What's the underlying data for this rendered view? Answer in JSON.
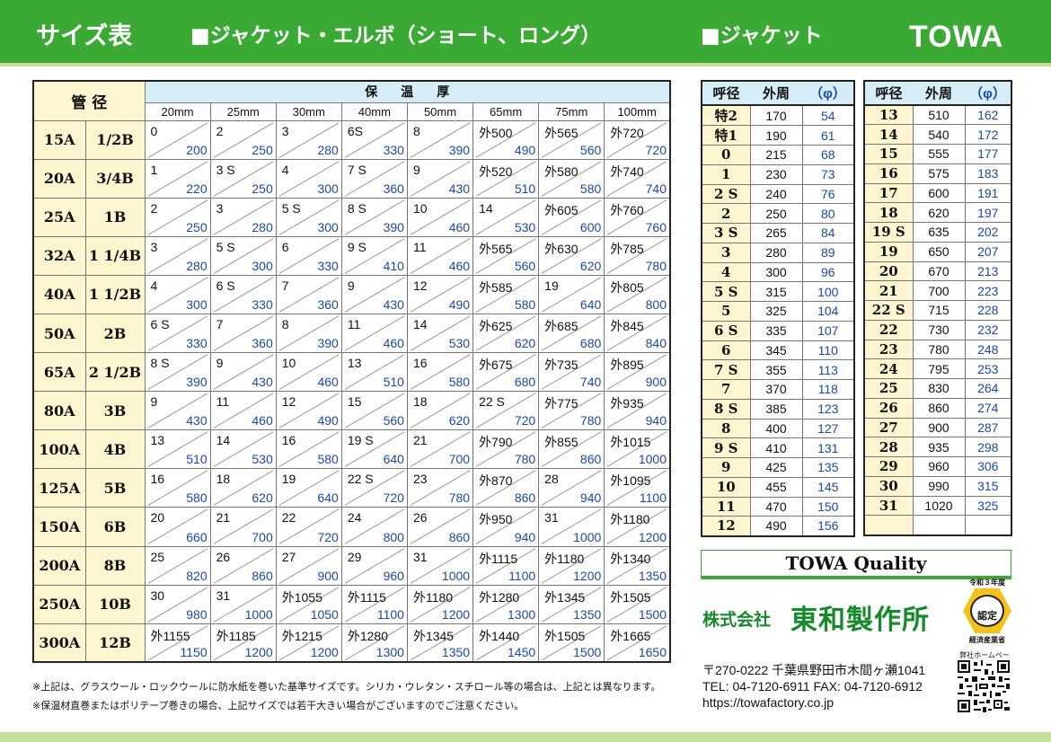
{
  "header": {
    "title": "サイズ表",
    "section_left": "■ジャケット・エルボ（ショート、ロング）",
    "section_right": "■ジャケット",
    "logo": "TOWA"
  },
  "size_table": {
    "pipe_header": "管 径",
    "insulation_header": "保温厚",
    "thicknesses": [
      "20mm",
      "25mm",
      "30mm",
      "40mm",
      "50mm",
      "65mm",
      "75mm",
      "100mm"
    ],
    "rows": [
      {
        "a": "15A",
        "b": "1/2B",
        "cells": [
          {
            "s": "0",
            "p": "200"
          },
          {
            "s": "2",
            "p": "250"
          },
          {
            "s": "3",
            "p": "280"
          },
          {
            "s": "6S",
            "p": "330"
          },
          {
            "s": "8",
            "p": "390"
          },
          {
            "s": "外500",
            "p": "490"
          },
          {
            "s": "外565",
            "p": "560"
          },
          {
            "s": "外720",
            "p": "720"
          }
        ]
      },
      {
        "a": "20A",
        "b": "3/4B",
        "cells": [
          {
            "s": "1",
            "p": "220"
          },
          {
            "s": "3 S",
            "p": "250"
          },
          {
            "s": "4",
            "p": "300"
          },
          {
            "s": "7 S",
            "p": "360"
          },
          {
            "s": "9",
            "p": "430"
          },
          {
            "s": "外520",
            "p": "510"
          },
          {
            "s": "外580",
            "p": "580"
          },
          {
            "s": "外740",
            "p": "740"
          }
        ]
      },
      {
        "a": "25A",
        "b": "1B",
        "cells": [
          {
            "s": "2",
            "p": "250"
          },
          {
            "s": "3",
            "p": "280"
          },
          {
            "s": "5 S",
            "p": "300"
          },
          {
            "s": "8 S",
            "p": "390"
          },
          {
            "s": "10",
            "p": "460"
          },
          {
            "s": "14",
            "p": "530"
          },
          {
            "s": "外605",
            "p": "600"
          },
          {
            "s": "外760",
            "p": "760"
          }
        ]
      },
      {
        "a": "32A",
        "b": "1 1/4B",
        "cells": [
          {
            "s": "3",
            "p": "280"
          },
          {
            "s": "5 S",
            "p": "300"
          },
          {
            "s": "6",
            "p": "330"
          },
          {
            "s": "9 S",
            "p": "410"
          },
          {
            "s": "11",
            "p": "460"
          },
          {
            "s": "外565",
            "p": "560"
          },
          {
            "s": "外630",
            "p": "620"
          },
          {
            "s": "外785",
            "p": "780"
          }
        ]
      },
      {
        "a": "40A",
        "b": "1 1/2B",
        "cells": [
          {
            "s": "4",
            "p": "300"
          },
          {
            "s": "6 S",
            "p": "330"
          },
          {
            "s": "7",
            "p": "360"
          },
          {
            "s": "9",
            "p": "430"
          },
          {
            "s": "12",
            "p": "490"
          },
          {
            "s": "外585",
            "p": "580"
          },
          {
            "s": "19",
            "p": "640"
          },
          {
            "s": "外805",
            "p": "800"
          }
        ]
      },
      {
        "a": "50A",
        "b": "2B",
        "cells": [
          {
            "s": "6 S",
            "p": "330"
          },
          {
            "s": "7",
            "p": "360"
          },
          {
            "s": "8",
            "p": "390"
          },
          {
            "s": "11",
            "p": "460"
          },
          {
            "s": "14",
            "p": "530"
          },
          {
            "s": "外625",
            "p": "620"
          },
          {
            "s": "外685",
            "p": "680"
          },
          {
            "s": "外845",
            "p": "840"
          }
        ]
      },
      {
        "a": "65A",
        "b": "2 1/2B",
        "cells": [
          {
            "s": "8 S",
            "p": "390"
          },
          {
            "s": "9",
            "p": "430"
          },
          {
            "s": "10",
            "p": "460"
          },
          {
            "s": "13",
            "p": "510"
          },
          {
            "s": "16",
            "p": "580"
          },
          {
            "s": "外675",
            "p": "680"
          },
          {
            "s": "外735",
            "p": "740"
          },
          {
            "s": "外895",
            "p": "900"
          }
        ]
      },
      {
        "a": "80A",
        "b": "3B",
        "cells": [
          {
            "s": "9",
            "p": "430"
          },
          {
            "s": "11",
            "p": "460"
          },
          {
            "s": "12",
            "p": "490"
          },
          {
            "s": "15",
            "p": "560"
          },
          {
            "s": "18",
            "p": "620"
          },
          {
            "s": "22 S",
            "p": "720"
          },
          {
            "s": "外775",
            "p": "780"
          },
          {
            "s": "外935",
            "p": "940"
          }
        ]
      },
      {
        "a": "100A",
        "b": "4B",
        "cells": [
          {
            "s": "13",
            "p": "510"
          },
          {
            "s": "14",
            "p": "530"
          },
          {
            "s": "16",
            "p": "580"
          },
          {
            "s": "19 S",
            "p": "640"
          },
          {
            "s": "21",
            "p": "700"
          },
          {
            "s": "外790",
            "p": "780"
          },
          {
            "s": "外855",
            "p": "860"
          },
          {
            "s": "外1015",
            "p": "1000"
          }
        ]
      },
      {
        "a": "125A",
        "b": "5B",
        "cells": [
          {
            "s": "16",
            "p": "580"
          },
          {
            "s": "18",
            "p": "620"
          },
          {
            "s": "19",
            "p": "640"
          },
          {
            "s": "22 S",
            "p": "720"
          },
          {
            "s": "23",
            "p": "780"
          },
          {
            "s": "外870",
            "p": "860"
          },
          {
            "s": "28",
            "p": "940"
          },
          {
            "s": "外1095",
            "p": "1100"
          }
        ]
      },
      {
        "a": "150A",
        "b": "6B",
        "cells": [
          {
            "s": "20",
            "p": "660"
          },
          {
            "s": "21",
            "p": "700"
          },
          {
            "s": "22",
            "p": "720"
          },
          {
            "s": "24",
            "p": "800"
          },
          {
            "s": "26",
            "p": "860"
          },
          {
            "s": "外950",
            "p": "940"
          },
          {
            "s": "31",
            "p": "1000"
          },
          {
            "s": "外1180",
            "p": "1200"
          }
        ]
      },
      {
        "a": "200A",
        "b": "8B",
        "cells": [
          {
            "s": "25",
            "p": "820"
          },
          {
            "s": "26",
            "p": "860"
          },
          {
            "s": "27",
            "p": "900"
          },
          {
            "s": "29",
            "p": "960"
          },
          {
            "s": "31",
            "p": "1000"
          },
          {
            "s": "外1115",
            "p": "1100"
          },
          {
            "s": "外1180",
            "p": "1200"
          },
          {
            "s": "外1340",
            "p": "1350"
          }
        ]
      },
      {
        "a": "250A",
        "b": "10B",
        "cells": [
          {
            "s": "30",
            "p": "980"
          },
          {
            "s": "31",
            "p": "1000"
          },
          {
            "s": "外1055",
            "p": "1050"
          },
          {
            "s": "外1115",
            "p": "1100"
          },
          {
            "s": "外1180",
            "p": "1200"
          },
          {
            "s": "外1280",
            "p": "1300"
          },
          {
            "s": "外1345",
            "p": "1350"
          },
          {
            "s": "外1505",
            "p": "1500"
          }
        ]
      },
      {
        "a": "300A",
        "b": "12B",
        "cells": [
          {
            "s": "外1155",
            "p": "1150"
          },
          {
            "s": "外1185",
            "p": "1200"
          },
          {
            "s": "外1215",
            "p": "1200"
          },
          {
            "s": "外1280",
            "p": "1300"
          },
          {
            "s": "外1345",
            "p": "1350"
          },
          {
            "s": "外1440",
            "p": "1450"
          },
          {
            "s": "外1505",
            "p": "1500"
          },
          {
            "s": "外1665",
            "p": "1650"
          }
        ]
      }
    ]
  },
  "notes": [
    "※上記は、グラスウール・ロックウールに防水紙を巻いた基準サイズです。シリカ・ウレタン・スチロール等の場合は、上記とは異なります。",
    "※保温材直巻またはポリテープ巻きの場合、上記サイズでは若干大きい場合がございますのでご注意ください。"
  ],
  "jacket_table": {
    "headers": [
      "呼径",
      "外周",
      "（φ）"
    ],
    "left_rows": [
      [
        "特2",
        "170",
        "54"
      ],
      [
        "特1",
        "190",
        "61"
      ],
      [
        "0",
        "215",
        "68"
      ],
      [
        "1",
        "230",
        "73"
      ],
      [
        "2 S",
        "240",
        "76"
      ],
      [
        "2",
        "250",
        "80"
      ],
      [
        "3 S",
        "265",
        "84"
      ],
      [
        "3",
        "280",
        "89"
      ],
      [
        "4",
        "300",
        "96"
      ],
      [
        "5 S",
        "315",
        "100"
      ],
      [
        "5",
        "325",
        "104"
      ],
      [
        "6 S",
        "335",
        "107"
      ],
      [
        "6",
        "345",
        "110"
      ],
      [
        "7 S",
        "355",
        "113"
      ],
      [
        "7",
        "370",
        "118"
      ],
      [
        "8 S",
        "385",
        "123"
      ],
      [
        "8",
        "400",
        "127"
      ],
      [
        "9 S",
        "410",
        "131"
      ],
      [
        "9",
        "425",
        "135"
      ],
      [
        "10",
        "455",
        "145"
      ],
      [
        "11",
        "470",
        "150"
      ],
      [
        "12",
        "490",
        "156"
      ]
    ],
    "right_rows": [
      [
        "13",
        "510",
        "162"
      ],
      [
        "14",
        "540",
        "172"
      ],
      [
        "15",
        "555",
        "177"
      ],
      [
        "16",
        "575",
        "183"
      ],
      [
        "17",
        "600",
        "191"
      ],
      [
        "18",
        "620",
        "197"
      ],
      [
        "19 S",
        "635",
        "202"
      ],
      [
        "19",
        "650",
        "207"
      ],
      [
        "20",
        "670",
        "213"
      ],
      [
        "21",
        "700",
        "223"
      ],
      [
        "22 S",
        "715",
        "228"
      ],
      [
        "22",
        "730",
        "232"
      ],
      [
        "23",
        "780",
        "248"
      ],
      [
        "24",
        "795",
        "253"
      ],
      [
        "25",
        "830",
        "264"
      ],
      [
        "26",
        "860",
        "274"
      ],
      [
        "27",
        "900",
        "287"
      ],
      [
        "28",
        "935",
        "298"
      ],
      [
        "29",
        "960",
        "306"
      ],
      [
        "30",
        "990",
        "315"
      ],
      [
        "31",
        "1020",
        "325"
      ],
      [
        "",
        "",
        ""
      ]
    ]
  },
  "company": {
    "quality": "TOWA Quality",
    "prefix": "株式会社",
    "name": "東和製作所",
    "cert_era": "令和３年度",
    "cert_mark": "認定",
    "cert_ministry": "経済産業省",
    "address": "〒270-0222 千葉県野田市木間ヶ瀬1041",
    "tel": "TEL: 04-7120-6911  FAX: 04-7120-6912",
    "url": "https://towafactory.co.jp",
    "qr_label": "弊社ホームページ"
  },
  "colors": {
    "brand_green": "#3aaa35",
    "light_green": "#c4df9a",
    "header_blue": "#d6ecf7",
    "cream": "#fdf5cf",
    "value_blue": "#1b49a8"
  }
}
